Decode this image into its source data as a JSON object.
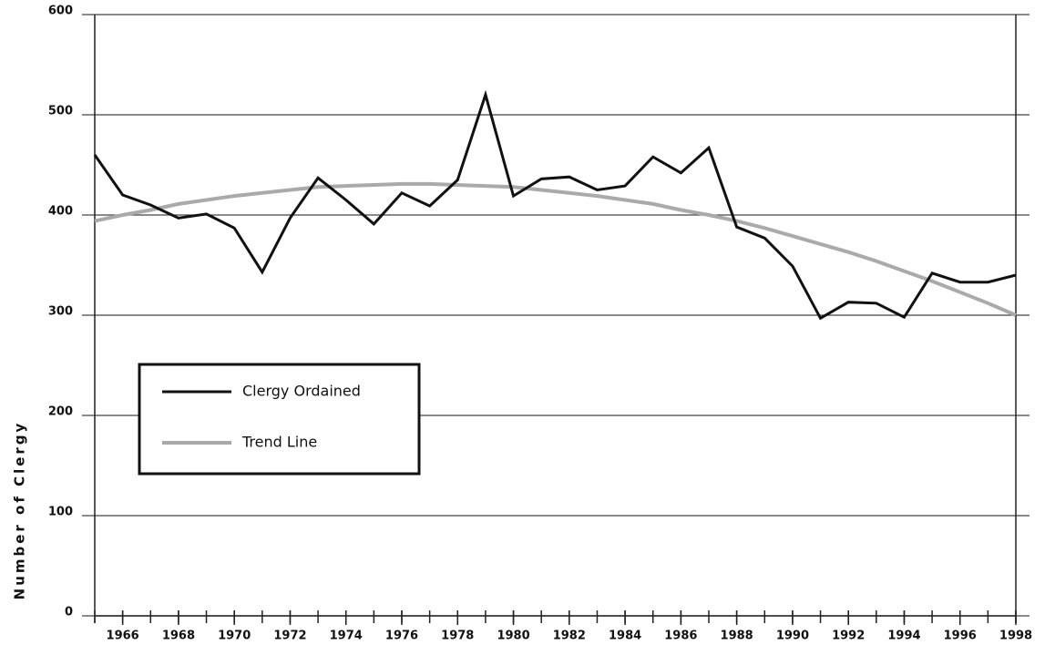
{
  "chart_data": {
    "type": "line",
    "y_label": "Number of Clergy",
    "x": [
      1965,
      1966,
      1967,
      1968,
      1969,
      1970,
      1971,
      1972,
      1973,
      1974,
      1975,
      1976,
      1977,
      1978,
      1979,
      1980,
      1981,
      1982,
      1983,
      1984,
      1985,
      1986,
      1987,
      1988,
      1989,
      1990,
      1991,
      1992,
      1993,
      1994,
      1995,
      1996,
      1997,
      1998
    ],
    "series": [
      {
        "name": "Clergy Ordained",
        "color": "#111111",
        "values": [
          460,
          420,
          410,
          397,
          401,
          387,
          343,
          397,
          437,
          415,
          391,
          422,
          409,
          435,
          520,
          419,
          436,
          438,
          425,
          429,
          458,
          442,
          467,
          388,
          377,
          349,
          297,
          313,
          312,
          298,
          342,
          333,
          333,
          340
        ]
      },
      {
        "name": "Trend Line",
        "color": "#aaaaaa",
        "values": [
          394,
          400,
          405,
          411,
          415,
          419,
          422,
          425,
          428,
          429,
          430,
          431,
          431,
          430,
          429,
          428,
          425,
          422,
          419,
          415,
          411,
          405,
          400,
          394,
          387,
          379,
          371,
          363,
          354,
          344,
          334,
          323,
          312,
          300
        ]
      }
    ],
    "xlim": [
      1965,
      1998
    ],
    "xticks": [
      1966,
      1968,
      1970,
      1972,
      1974,
      1976,
      1978,
      1980,
      1982,
      1984,
      1986,
      1988,
      1990,
      1992,
      1994,
      1996,
      1998
    ],
    "ylim": [
      0,
      600
    ],
    "yticks": [
      0,
      100,
      200,
      300,
      400,
      500,
      600
    ],
    "grid": true,
    "legend": "left"
  }
}
